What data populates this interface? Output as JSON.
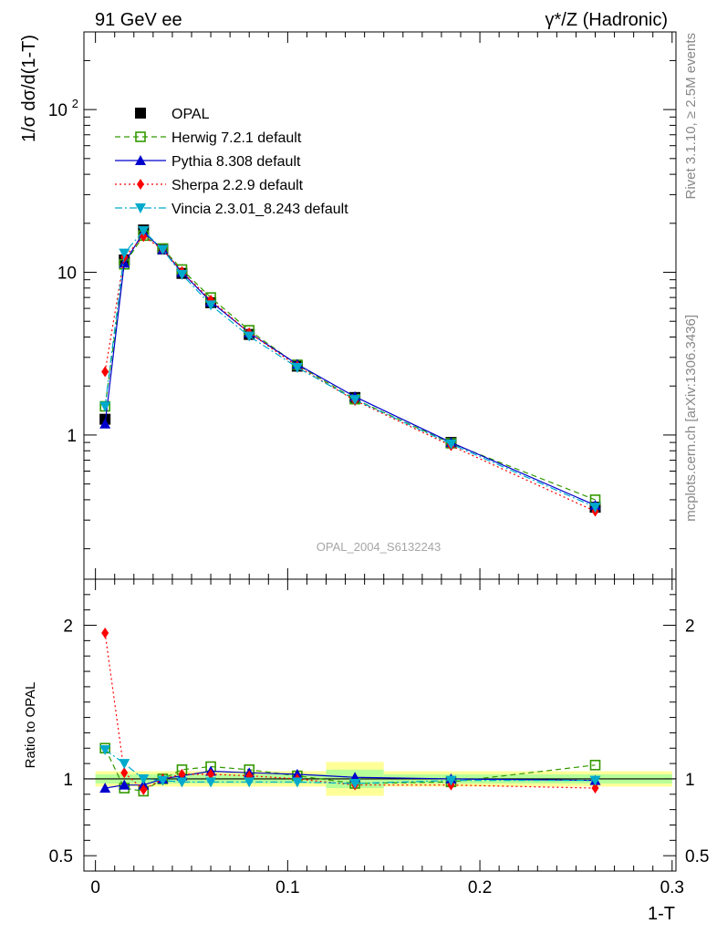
{
  "header": {
    "left_title": "91 GeV ee",
    "right_title": "γ*/Z (Hadronic)"
  },
  "side_labels": {
    "rivet": "Rivet 3.1.10, ≥ 2.5M events",
    "mcplots": "mcplots.cern.ch [arXiv:1306.3436]"
  },
  "watermark": "OPAL_2004_S6132243",
  "legend": [
    {
      "label": "OPAL",
      "color": "#000000",
      "marker": "square-filled",
      "line": "none"
    },
    {
      "label": "Herwig 7.2.1 default",
      "color": "#339900",
      "marker": "square-open",
      "line": "dashed"
    },
    {
      "label": "Pythia 8.308 default",
      "color": "#0000cc",
      "marker": "triangle-up",
      "line": "solid"
    },
    {
      "label": "Sherpa 2.2.9 default",
      "color": "#ff0000",
      "marker": "diamond",
      "line": "dotted"
    },
    {
      "label": "Vincia 2.3.01_8.243 default",
      "color": "#00aacc",
      "marker": "triangle-down",
      "line": "dashdot"
    }
  ],
  "chart_data": [
    {
      "type": "line",
      "panel": "main",
      "ylabel": "1/σ dσ/d(1-T)",
      "yscale": "log",
      "ylim": [
        0.13,
        300
      ],
      "xlim": [
        -0.006,
        0.302
      ],
      "yticks": [
        "1",
        "10",
        "10^2"
      ],
      "x": [
        0.005,
        0.015,
        0.025,
        0.035,
        0.045,
        0.06,
        0.08,
        0.105,
        0.135,
        0.185,
        0.26
      ],
      "series": [
        {
          "name": "OPAL",
          "values": [
            1.25,
            11.9,
            18.2,
            13.9,
            9.85,
            6.5,
            4.15,
            2.65,
            1.7,
            0.9,
            0.36
          ]
        },
        {
          "name": "Herwig 7.2.1 default",
          "values": [
            1.5,
            11.2,
            16.8,
            14.0,
            10.4,
            7.0,
            4.4,
            2.7,
            1.66,
            0.89,
            0.4
          ]
        },
        {
          "name": "Pythia 8.308 default",
          "values": [
            1.17,
            11.4,
            17.6,
            13.8,
            10.0,
            6.6,
            4.25,
            2.72,
            1.72,
            0.9,
            0.37
          ]
        },
        {
          "name": "Sherpa 2.2.9 default",
          "values": [
            2.45,
            12.4,
            16.6,
            13.8,
            10.1,
            6.75,
            4.25,
            2.65,
            1.63,
            0.86,
            0.34
          ]
        },
        {
          "name": "Vincia 2.3.01_8.243 default",
          "values": [
            1.5,
            13.1,
            18.0,
            13.8,
            9.7,
            6.3,
            4.05,
            2.6,
            1.65,
            0.88,
            0.36
          ]
        }
      ]
    },
    {
      "type": "line",
      "panel": "ratio",
      "ylabel": "Ratio to OPAL",
      "xlabel": "1-T",
      "ylim": [
        0.4,
        2.3
      ],
      "yticks": [
        "0.5",
        "1",
        "2"
      ],
      "xticks": [
        "0",
        "0.1",
        "0.2",
        "0.3"
      ],
      "x": [
        0.005,
        0.015,
        0.025,
        0.035,
        0.045,
        0.06,
        0.08,
        0.105,
        0.135,
        0.185,
        0.26
      ],
      "series": [
        {
          "name": "Herwig 7.2.1 default",
          "values": [
            1.2,
            0.94,
            0.92,
            1.0,
            1.06,
            1.08,
            1.06,
            1.02,
            0.97,
            0.98,
            1.09
          ]
        },
        {
          "name": "Pythia 8.308 default",
          "values": [
            0.94,
            0.96,
            0.96,
            1.0,
            1.02,
            1.05,
            1.04,
            1.03,
            1.01,
            1.0,
            0.99
          ]
        },
        {
          "name": "Sherpa 2.2.9 default",
          "values": [
            1.95,
            1.04,
            0.93,
            1.0,
            1.03,
            1.03,
            1.02,
            1.0,
            0.96,
            0.96,
            0.94
          ]
        },
        {
          "name": "Vincia 2.3.01_8.243 default",
          "values": [
            1.19,
            1.1,
            1.0,
            0.99,
            0.98,
            0.98,
            0.98,
            0.98,
            0.97,
            0.99,
            0.99
          ]
        }
      ],
      "bands": [
        {
          "x0": 0.0,
          "x1": 0.12,
          "inner": 0.03,
          "outer": 0.05
        },
        {
          "x0": 0.12,
          "x1": 0.15,
          "inner": 0.06,
          "outer": 0.11
        },
        {
          "x0": 0.15,
          "x1": 0.3,
          "inner": 0.03,
          "outer": 0.05
        }
      ]
    }
  ]
}
